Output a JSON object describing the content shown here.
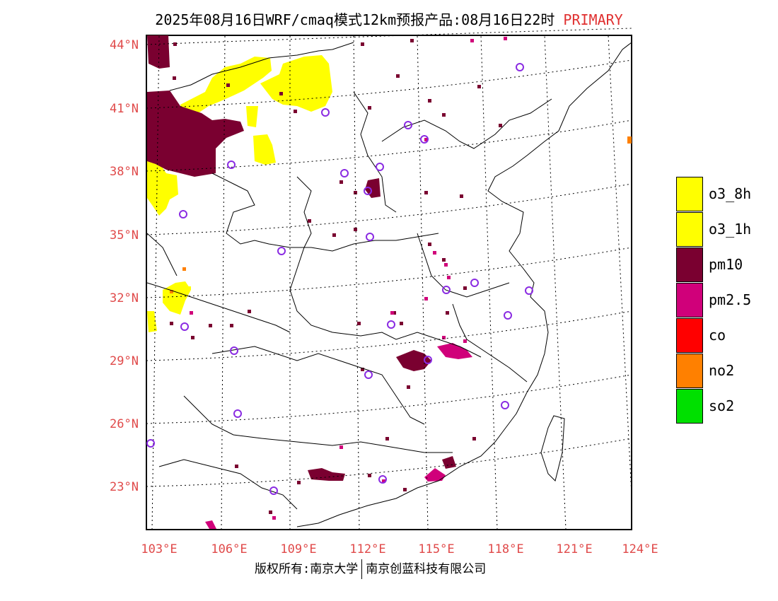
{
  "title": {
    "main": "2025年08月16日WRF/cmaq模式12km预报产品:08月16日22时",
    "tag": "PRIMARY"
  },
  "axes": {
    "lat_labels": [
      "44°N",
      "41°N",
      "38°N",
      "35°N",
      "32°N",
      "29°N",
      "26°N",
      "23°N"
    ],
    "lon_labels": [
      "103°E",
      "106°E",
      "109°E",
      "112°E",
      "115°E",
      "118°E",
      "121°E",
      "124°E"
    ]
  },
  "legend": {
    "items": [
      {
        "label": "o3_8h",
        "color": "#ffff00"
      },
      {
        "label": "o3_1h",
        "color": "#ffff00"
      },
      {
        "label": "pm10",
        "color": "#7a0030"
      },
      {
        "label": "pm2.5",
        "color": "#d0007a"
      },
      {
        "label": "co",
        "color": "#ff0000"
      },
      {
        "label": "no2",
        "color": "#ff8000"
      },
      {
        "label": "so2",
        "color": "#00e000"
      }
    ]
  },
  "colors": {
    "o3": "#ffff00",
    "pm10": "#7a0030",
    "pm25": "#d0007a",
    "no2": "#ff8000",
    "station": "#8a2be2",
    "label": "#e04a4a"
  },
  "footer": {
    "left": "版权所有:南京大学",
    "right": "南京创蓝科技有限公司"
  }
}
